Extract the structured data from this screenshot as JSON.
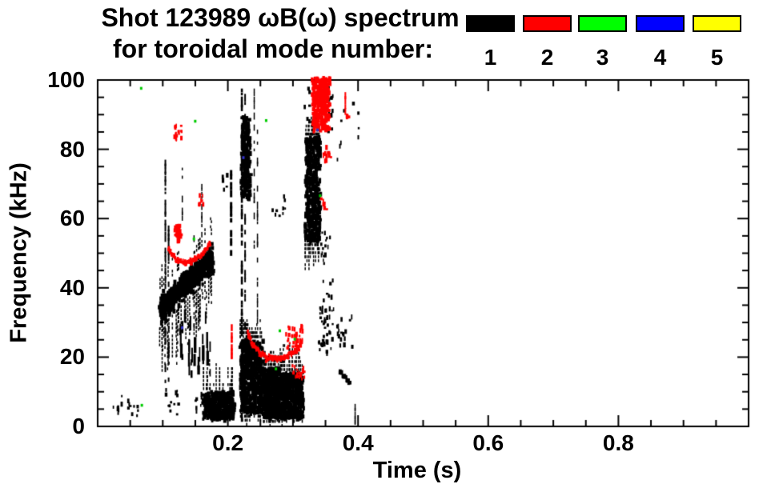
{
  "title": {
    "line1": "Shot 123989 ωB(ω) spectrum",
    "line2": "for toroidal mode number:"
  },
  "legend": {
    "entries": [
      {
        "label": "1",
        "color": "#000000"
      },
      {
        "label": "2",
        "color": "#ff0000"
      },
      {
        "label": "3",
        "color": "#00ff00"
      },
      {
        "label": "4",
        "color": "#0000ff"
      },
      {
        "label": "5",
        "color": "#ffff00"
      }
    ]
  },
  "chart_data": {
    "type": "scatter",
    "subtype": "mode-spectrogram",
    "title": "Shot 123989 ωB(ω) spectrum for toroidal mode number",
    "xlabel": "Time (s)",
    "ylabel": "Frequency (kHz)",
    "grid": false,
    "x_axis": {
      "min": 0.0,
      "max": 1.0,
      "major_tick_values": [
        0.2,
        0.4,
        0.6,
        0.8
      ],
      "major_tick_labels": [
        "0.2",
        "0.4",
        "0.6",
        "0.8"
      ],
      "minor_tick_step": 0.05
    },
    "y_axis": {
      "min": 0,
      "max": 100,
      "major_tick_values": [
        0,
        20,
        40,
        60,
        80,
        100
      ],
      "major_tick_labels": [
        "0",
        "20",
        "40",
        "60",
        "80",
        "100"
      ],
      "minor_tick_step": 5
    },
    "mode_colors": {
      "1": "#000000",
      "2": "#ff0000",
      "3": "#00cc00",
      "4": "#3333cc",
      "5": "#ffff00"
    },
    "clusters": [
      {
        "type": "scatter",
        "mode": 1,
        "t": [
          0.022,
          0.036
        ],
        "f": [
          2,
          9
        ],
        "n": 7
      },
      {
        "type": "scatter",
        "mode": 1,
        "t": [
          0.045,
          0.062
        ],
        "f": [
          2,
          7
        ],
        "n": 9
      },
      {
        "type": "scatter",
        "mode": 1,
        "t": [
          0.103,
          0.123
        ],
        "f": [
          3,
          10
        ],
        "n": 12
      },
      {
        "type": "scatter",
        "mode": 1,
        "t": [
          0.148,
          0.168
        ],
        "f": [
          2.5,
          10
        ],
        "n": 14
      },
      {
        "type": "vstreak",
        "mode": 1,
        "t": 0.104,
        "f": [
          13,
          77
        ],
        "w": 2,
        "density": 0.55
      },
      {
        "type": "vstreak",
        "mode": 1,
        "t": 0.109,
        "f": [
          10,
          58
        ],
        "w": 2,
        "density": 0.5
      },
      {
        "type": "vstreak",
        "mode": 1,
        "t": 0.13,
        "f": [
          60,
          77
        ],
        "w": 1.5,
        "density": 0.5
      },
      {
        "type": "vstreak",
        "mode": 1,
        "t": 0.16,
        "f": [
          54,
          70
        ],
        "w": 1.5,
        "density": 0.55
      },
      {
        "type": "band",
        "mode": 1,
        "path": [
          [
            0.094,
            34
          ],
          [
            0.115,
            38
          ],
          [
            0.14,
            43
          ],
          [
            0.16,
            46.5
          ],
          [
            0.175,
            50
          ]
        ],
        "hw": 5.5,
        "n": 650,
        "spikes_down": 16,
        "spikes_up": 7
      },
      {
        "type": "vstreak",
        "mode": 1,
        "t": 0.205,
        "f": [
          50,
          74
        ],
        "w": 3,
        "density": 0.8
      },
      {
        "type": "blob",
        "mode": 1,
        "t": [
          0.161,
          0.208
        ],
        "f": [
          2.5,
          10.5
        ],
        "n": 380,
        "spikes_up": 9
      },
      {
        "type": "vstreak",
        "mode": 1,
        "t": 0.2215,
        "f": [
          2,
          101
        ],
        "w": 2.5,
        "density": 0.6
      },
      {
        "type": "vstreak",
        "mode": 1,
        "t": 0.2265,
        "f": [
          25,
          96
        ],
        "w": 2,
        "density": 0.45
      },
      {
        "type": "blob",
        "mode": 1,
        "t": [
          0.2195,
          0.2315
        ],
        "f": [
          66,
          90
        ],
        "n": 230
      },
      {
        "type": "vstreak",
        "mode": 1,
        "t": 0.2405,
        "f": [
          50,
          101
        ],
        "w": 1.5,
        "density": 0.45
      },
      {
        "type": "vstreak",
        "mode": 1,
        "t": 0.2455,
        "f": [
          28,
          88
        ],
        "w": 1.5,
        "density": 0.35
      },
      {
        "type": "blob",
        "mode": 1,
        "t": [
          0.218,
          0.251
        ],
        "f": [
          4.5,
          25.5
        ],
        "n": 560,
        "spikes_up": 5,
        "spikes_down": 4
      },
      {
        "type": "blob",
        "mode": 1,
        "t": [
          0.252,
          0.2775
        ],
        "f": [
          3,
          17.5
        ],
        "n": 500,
        "spikes_up": 6,
        "spikes_down": 2.5
      },
      {
        "type": "blob",
        "mode": 1,
        "t": [
          0.278,
          0.3135
        ],
        "f": [
          3,
          16
        ],
        "n": 500,
        "spikes_up": 8,
        "spikes_down": 2.5
      },
      {
        "type": "blob",
        "mode": 1,
        "t": [
          0.3175,
          0.3395
        ],
        "f": [
          54,
          84
        ],
        "n": 460,
        "spikes_down": 9,
        "spikes_up": 5
      },
      {
        "type": "scatter",
        "mode": 1,
        "t": [
          0.315,
          0.36
        ],
        "f": [
          84,
          97
        ],
        "n": 26
      },
      {
        "type": "scatter",
        "mode": 1,
        "t": [
          0.338,
          0.362
        ],
        "f": [
          20,
          34
        ],
        "n": 42
      },
      {
        "type": "scatter",
        "mode": 1,
        "t": [
          0.34,
          0.356
        ],
        "f": [
          45,
          56
        ],
        "n": 16
      },
      {
        "type": "scatter",
        "mode": 1,
        "t": [
          0.365,
          0.39
        ],
        "f": [
          21,
          31
        ],
        "n": 18
      },
      {
        "type": "arc",
        "mode": 1,
        "path": [
          [
            0.369,
            16.5
          ],
          [
            0.386,
            13
          ]
        ],
        "n": 14,
        "hw": 0.8,
        "big": true
      },
      {
        "type": "vstreak",
        "mode": 1,
        "t": 0.3955,
        "f": [
          1.5,
          6.5
        ],
        "w": 1.5,
        "density": 0.8
      },
      {
        "type": "scatter",
        "mode": 1,
        "t": [
          0.258,
          0.29
        ],
        "f": [
          60,
          66
        ],
        "n": 10
      },
      {
        "type": "scatter",
        "mode": 1,
        "t": [
          0.19,
          0.2
        ],
        "f": [
          67,
          72
        ],
        "n": 5
      },
      {
        "type": "scatter",
        "mode": 1,
        "t": [
          0.36,
          0.415
        ],
        "f": [
          76,
          94
        ],
        "n": 9
      },
      {
        "type": "scatter",
        "mode": 1,
        "t": [
          0.125,
          0.172
        ],
        "f": [
          14,
          30
        ],
        "n": 34,
        "tall": true
      },
      {
        "type": "scatter",
        "mode": 1,
        "t": [
          0.33,
          0.36
        ],
        "f": [
          35,
          45
        ],
        "n": 8
      },
      {
        "type": "arc",
        "mode": 2,
        "path": [
          [
            0.107,
            51.5
          ],
          [
            0.118,
            49
          ],
          [
            0.132,
            47.5
          ],
          [
            0.148,
            48.5
          ],
          [
            0.162,
            50.5
          ],
          [
            0.172,
            53.5
          ]
        ],
        "n": 110,
        "hw": 1.2
      },
      {
        "type": "blob",
        "mode": 2,
        "t": [
          0.118,
          0.125
        ],
        "f": [
          54,
          58.5
        ],
        "n": 30
      },
      {
        "type": "scatter",
        "mode": 2,
        "t": [
          0.116,
          0.128
        ],
        "f": [
          82,
          87
        ],
        "n": 16
      },
      {
        "type": "scatter",
        "mode": 2,
        "t": [
          0.154,
          0.161
        ],
        "f": [
          63,
          66.5
        ],
        "n": 9
      },
      {
        "type": "vstreak",
        "mode": 2,
        "t": 0.206,
        "f": [
          17.5,
          29.5
        ],
        "w": 2.5,
        "density": 0.75
      },
      {
        "type": "arc",
        "mode": 2,
        "path": [
          [
            0.2285,
            27.5
          ],
          [
            0.237,
            24
          ],
          [
            0.247,
            21.8
          ],
          [
            0.258,
            20.2
          ],
          [
            0.272,
            19.7
          ],
          [
            0.286,
            20.3
          ],
          [
            0.3,
            21.8
          ],
          [
            0.309,
            23.5
          ],
          [
            0.3135,
            25.5
          ]
        ],
        "n": 150,
        "hw": 1.3
      },
      {
        "type": "scatter",
        "mode": 2,
        "t": [
          0.288,
          0.313
        ],
        "f": [
          22,
          28.5
        ],
        "n": 34
      },
      {
        "type": "scatter",
        "mode": 2,
        "t": [
          0.298,
          0.318
        ],
        "f": [
          13,
          17
        ],
        "n": 22
      },
      {
        "type": "blob",
        "mode": 2,
        "t": [
          0.328,
          0.3535
        ],
        "f": [
          86,
          101
        ],
        "n": 300
      },
      {
        "type": "scatter",
        "mode": 2,
        "t": [
          0.345,
          0.357
        ],
        "f": [
          75.5,
          80
        ],
        "n": 12
      },
      {
        "type": "vstreak",
        "mode": 2,
        "t": 0.3805,
        "f": [
          90.5,
          96.5
        ],
        "w": 2,
        "density": 0.75
      },
      {
        "type": "scatter",
        "mode": 2,
        "t": [
          0.379,
          0.384
        ],
        "f": [
          87.5,
          89.5
        ],
        "n": 4
      },
      {
        "type": "scatter",
        "mode": 2,
        "t": [
          0.341,
          0.351
        ],
        "f": [
          62,
          66
        ],
        "n": 6
      },
      {
        "type": "dots",
        "mode": 3,
        "points": [
          [
            0.146,
            54.5
          ],
          [
            0.148,
            88.5
          ],
          [
            0.257,
            88.7
          ],
          [
            0.34,
            67
          ],
          [
            0.278,
            28
          ],
          [
            0.301,
            25.6
          ],
          [
            0.272,
            17
          ],
          [
            0.065,
            98
          ],
          [
            0.066,
            6.5
          ]
        ]
      },
      {
        "type": "dots",
        "mode": 4,
        "points": [
          [
            0.128,
            28.9
          ],
          [
            0.336,
            86
          ],
          [
            0.222,
            78
          ]
        ]
      }
    ]
  }
}
